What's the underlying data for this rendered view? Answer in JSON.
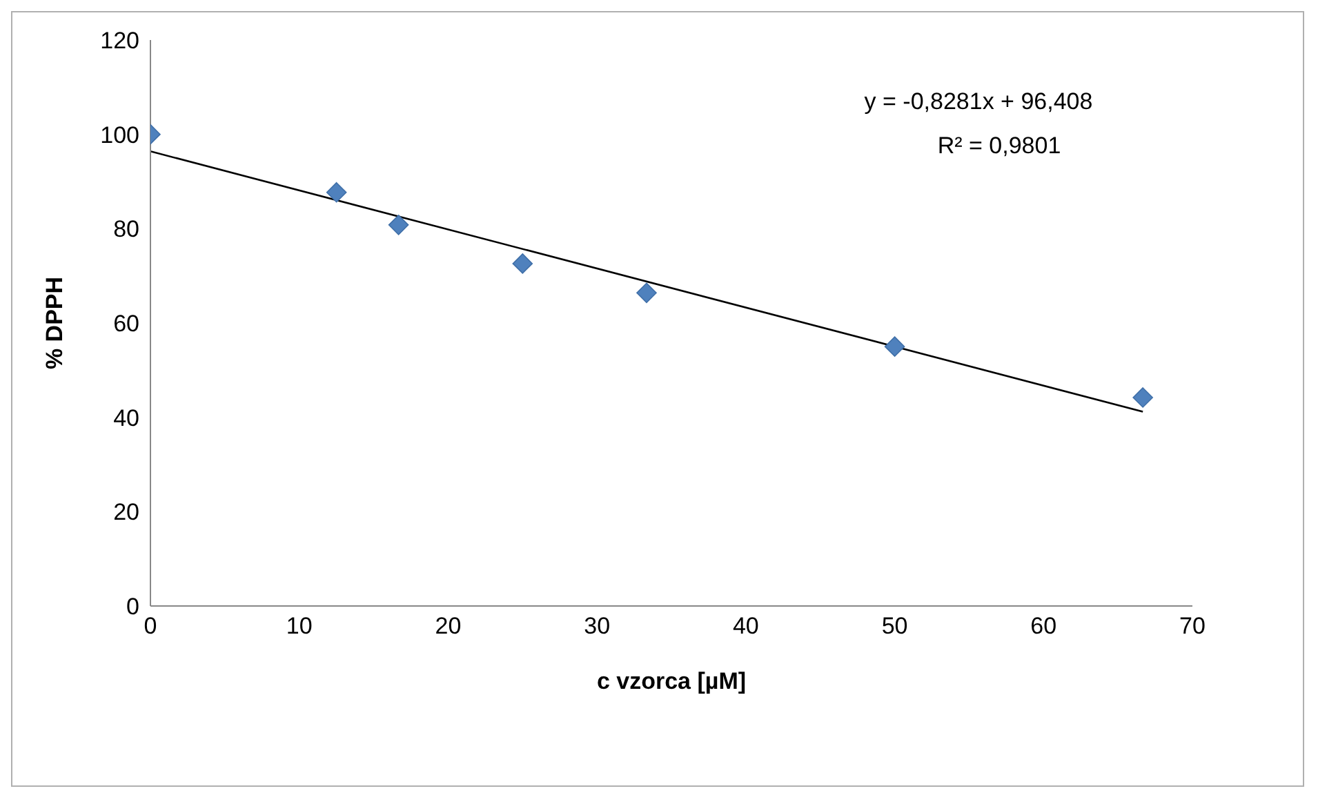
{
  "chart_data": {
    "type": "scatter",
    "xlabel": "c vzorca [µM]",
    "ylabel": "% DPPH",
    "series": [
      {
        "color": "#4f81bd",
        "marker": "diamond",
        "x": [
          0,
          12.5,
          16.67,
          25,
          33.33,
          50,
          66.67
        ],
        "values": [
          100,
          87.7,
          80.8,
          72.6,
          66.4,
          55,
          44.2
        ]
      },
      {
        "type": "line",
        "color": "#000000",
        "marker": "none",
        "x": [
          0,
          66.67
        ],
        "values": [
          96.4,
          41.2
        ]
      }
    ],
    "xlim": [
      0,
      70
    ],
    "xticks": [
      0,
      10,
      20,
      30,
      40,
      50,
      60,
      70
    ],
    "ylim": [
      0,
      120
    ],
    "yticks": [
      0,
      20,
      40,
      60,
      80,
      100,
      120
    ],
    "grid": false,
    "legend": false,
    "annotations": [
      "y = -0,8281x + 96,408",
      "R² = 0,9801"
    ]
  }
}
